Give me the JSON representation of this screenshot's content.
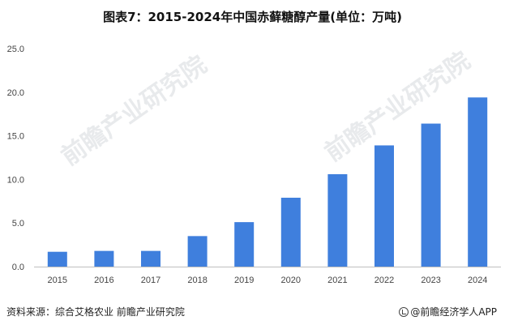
{
  "chart_data": {
    "type": "bar",
    "title": "图表7：2015-2024年中国赤藓糖醇产量(单位：万吨)",
    "categories": [
      "2015",
      "2016",
      "2017",
      "2018",
      "2019",
      "2020",
      "2021",
      "2022",
      "2023",
      "2024"
    ],
    "values": [
      1.7,
      1.8,
      1.8,
      3.5,
      5.1,
      7.9,
      10.6,
      13.9,
      16.4,
      19.4
    ],
    "y_ticks": [
      "0.0",
      "5.0",
      "10.0",
      "15.0",
      "20.0",
      "25.0"
    ],
    "ylim": [
      0,
      25
    ],
    "xlabel": "",
    "ylabel": "",
    "grid": false,
    "bar_color": "#3f7fdd",
    "axis_color": "#bfbfbf"
  },
  "footer": {
    "source": "资料来源：综合艾格农业 前瞻产业研究院",
    "brand": "@前瞻经济学人APP"
  },
  "watermark": {
    "text": "前瞻产业研究院"
  }
}
